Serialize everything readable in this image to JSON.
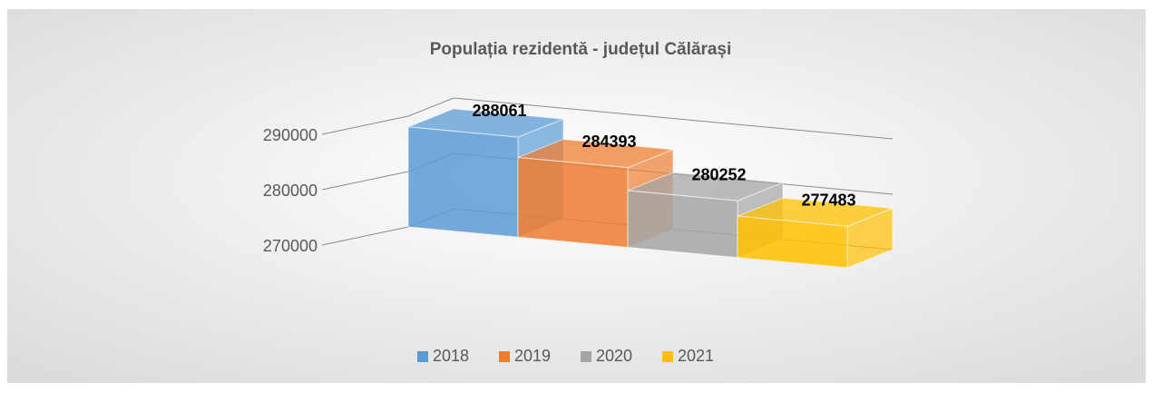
{
  "chart_data": {
    "type": "bar3d",
    "title": "Populația rezidentă - județul Călărași",
    "categories": [
      null
    ],
    "series": [
      {
        "name": "2018",
        "color": "#5b9bd5",
        "values": [
          288061
        ]
      },
      {
        "name": "2019",
        "color": "#ed7d31",
        "values": [
          284393
        ]
      },
      {
        "name": "2020",
        "color": "#a5a5a5",
        "values": [
          280252
        ]
      },
      {
        "name": "2021",
        "color": "#ffc000",
        "values": [
          277483
        ]
      }
    ],
    "ylim": [
      270000,
      290000
    ],
    "yticks": [
      270000,
      280000,
      290000
    ],
    "grid": true,
    "legend": "bottom"
  }
}
